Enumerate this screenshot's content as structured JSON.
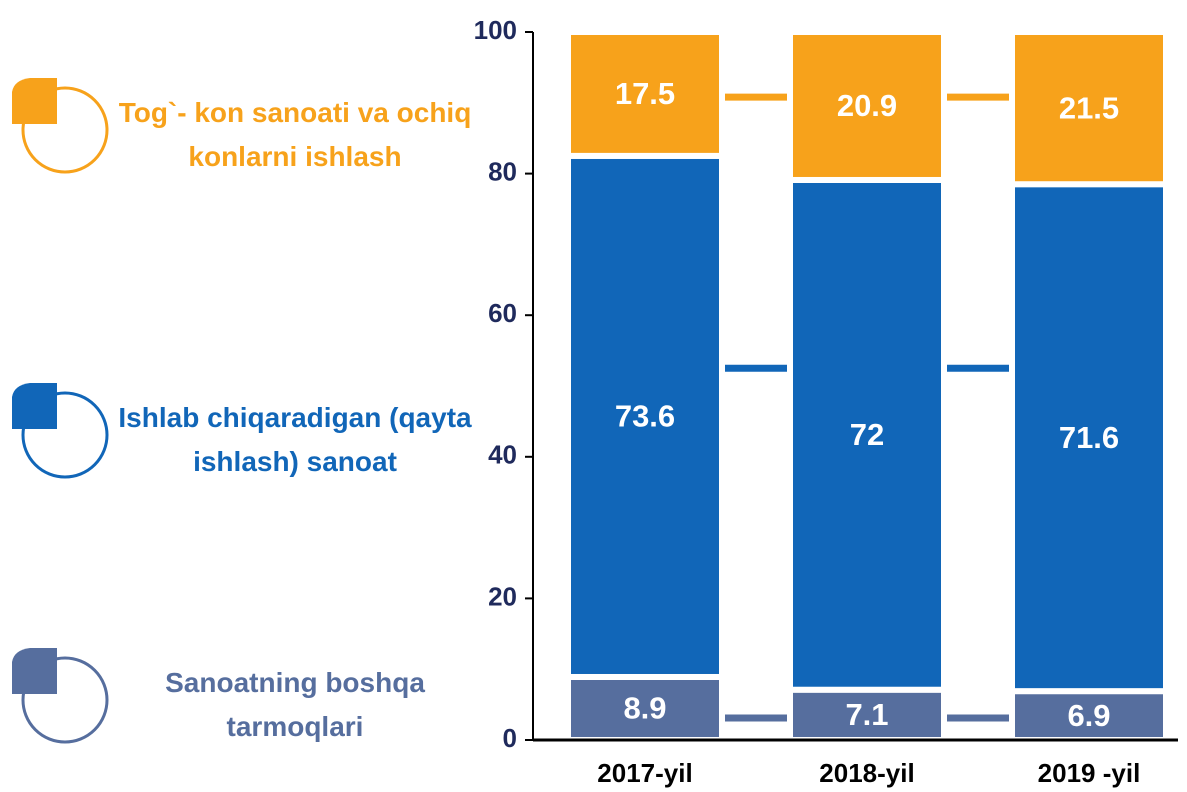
{
  "chart_data": {
    "type": "stacked_bar",
    "categories": [
      "2017-yil",
      "2018-yil",
      "2019 -yil"
    ],
    "series": [
      {
        "name": "Sanoatning boshqa tarmoqlari",
        "color": "#566e9e",
        "values": [
          8.9,
          7.1,
          6.9
        ]
      },
      {
        "name": "Ishlab chiqaradigan (qayta ishlash) sanoat",
        "color": "#1166b8",
        "values": [
          73.6,
          72,
          71.6
        ]
      },
      {
        "name": "Tog`- kon sanoati va ochiq konlarni ishlash",
        "color": "#f7a21b",
        "values": [
          17.5,
          20.9,
          21.5
        ]
      }
    ],
    "ylim": [
      0,
      100
    ],
    "yticks": [
      0,
      20,
      40,
      60,
      80,
      100
    ],
    "legend": "left"
  }
}
